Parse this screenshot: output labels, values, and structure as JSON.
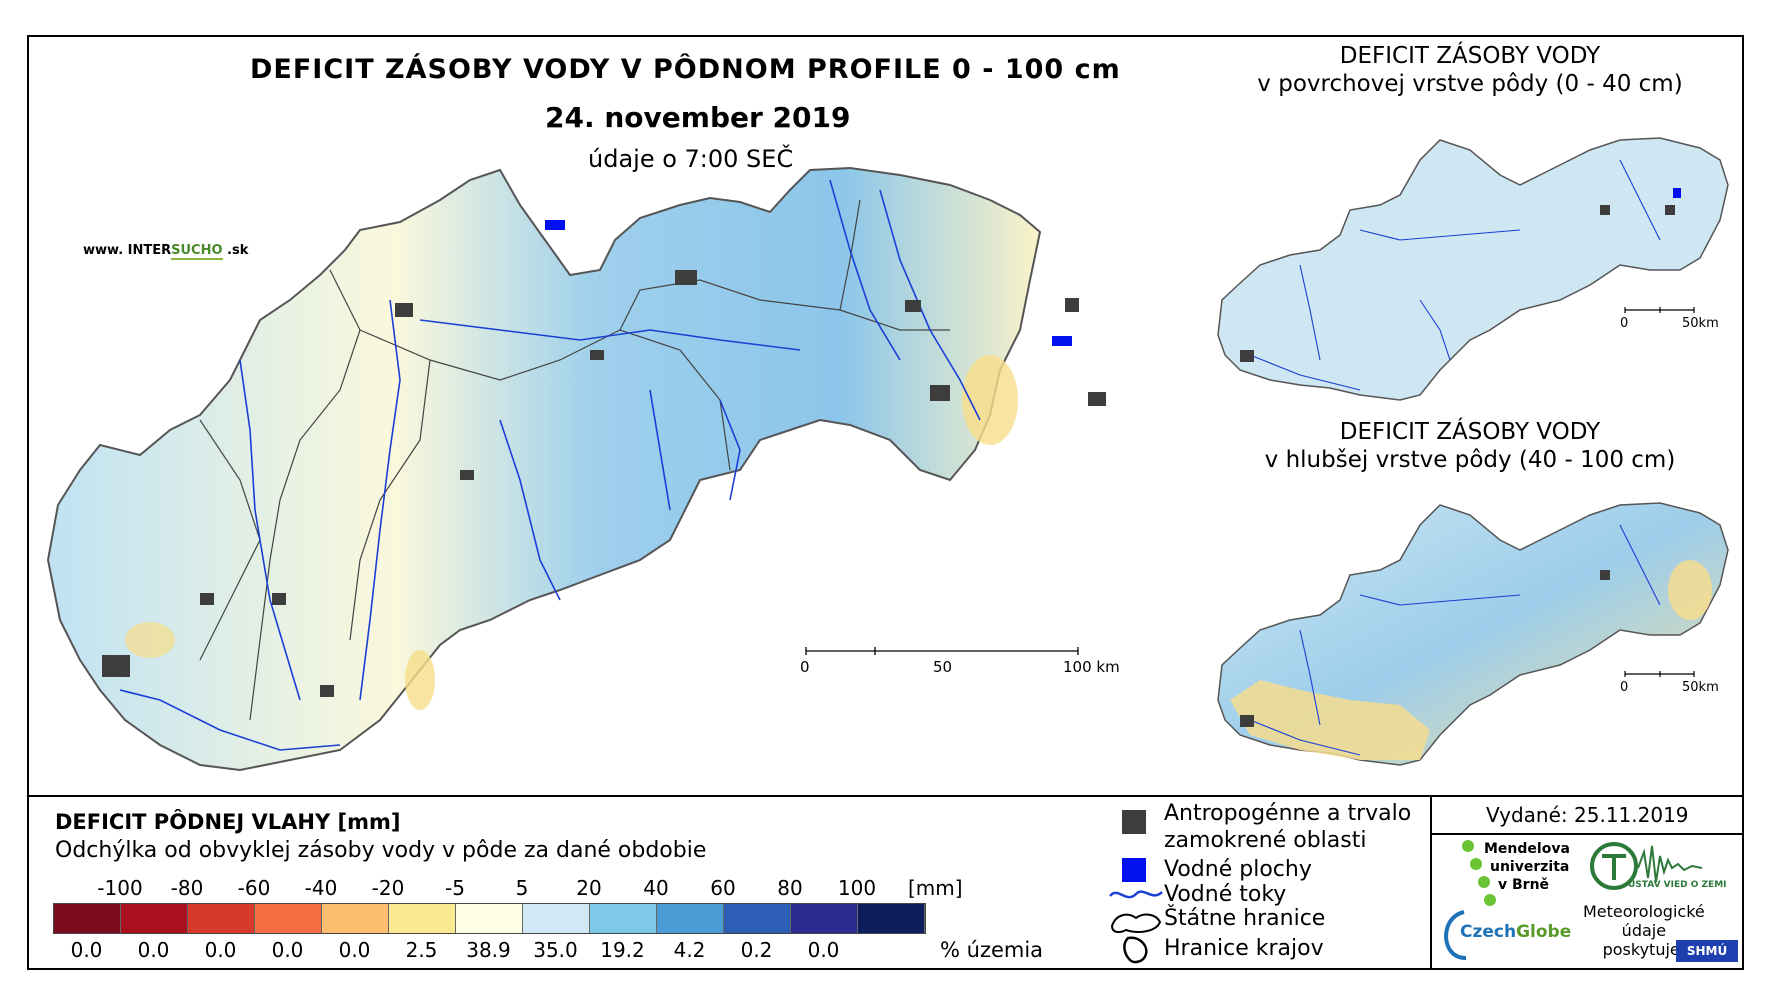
{
  "main": {
    "title": "DEFICIT ZÁSOBY VODY V PÔDNOM PROFILE 0 - 100 cm",
    "date": "24. november 2019",
    "subtitle": "údaje o 7:00 SEČ",
    "website_prefix": "www. INTER",
    "website_mid": "SUCHO",
    "website_suffix": " .sk",
    "scale": {
      "zero": "0",
      "mid": "50",
      "end": "100 km"
    }
  },
  "insets": [
    {
      "title": "DEFICIT ZÁSOBY VODY",
      "subtitle": "v povrchovej vrstve pôdy (0 - 40 cm)",
      "scale_zero": "0",
      "scale_end": "50km"
    },
    {
      "title": "DEFICIT ZÁSOBY VODY",
      "subtitle": "v hlubšej vrstve pôdy (40 - 100 cm)",
      "scale_zero": "0",
      "scale_end": "50km"
    }
  ],
  "legend": {
    "title": "DEFICIT PÔDNEJ VLAHY [mm]",
    "subtitle": "Odchýlka od obvyklej zásoby vody v pôde za dané obdobie",
    "ticks": [
      "-100",
      "-80",
      "-60",
      "-40",
      "-20",
      "-5",
      "5",
      "20",
      "40",
      "60",
      "80",
      "100"
    ],
    "unit": "[mm]",
    "colors": [
      "#7a0c1e",
      "#a8101e",
      "#d73a2b",
      "#f46d43",
      "#fdbf6f",
      "#fbe98f",
      "#fefde6",
      "#cfeaf6",
      "#7ec8e8",
      "#4a9bd6",
      "#2c5fb5",
      "#2a2c8f",
      "#0d1e5c"
    ],
    "percentages": [
      "0.0",
      "0.0",
      "0.0",
      "0.0",
      "0.0",
      "2.5",
      "38.9",
      "35.0",
      "19.2",
      "4.2",
      "0.2",
      "0.0"
    ],
    "pct_unit": "% územia"
  },
  "symbols": {
    "urban_1": "Antropogénne a trvalo",
    "urban_2": "zamokrené oblasti",
    "water_bodies": "Vodné plochy",
    "rivers": "Vodné toky",
    "state_border": "Štátne hranice",
    "region_border": "Hranice krajov"
  },
  "issued": "Vydané: 25.11.2019",
  "logos": {
    "mendel_1": "Mendelova",
    "mendel_2": "univerzita",
    "mendel_3": "v Brně",
    "czechglobe_1": "Czech",
    "czechglobe_2": "Globe",
    "ustav": "ÚSTAV VIED O ZEMI",
    "meteo_1": "Meteorologické",
    "meteo_2": "údaje",
    "meteo_3": "poskytuje:",
    "shmu": "SHMÚ"
  }
}
